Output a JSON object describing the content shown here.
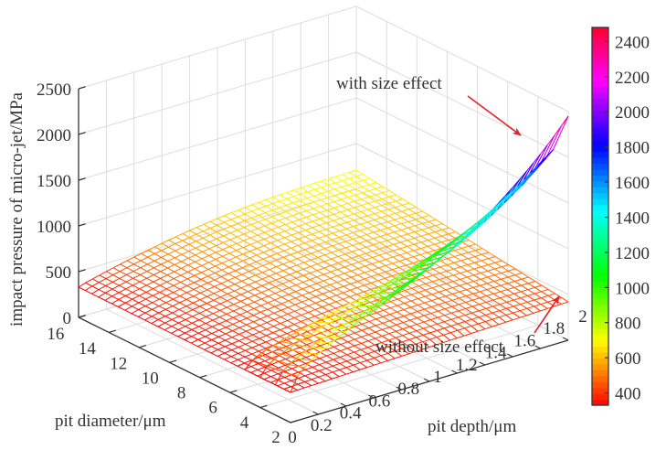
{
  "chart_data": {
    "type": "surface",
    "title": "",
    "xlabel": "pit depth/μm",
    "ylabel": "pit diameter/μm",
    "zlabel": "impact pressure of micro-jet/MPa",
    "xlim": [
      0,
      2
    ],
    "ylim": [
      2,
      16
    ],
    "zlim": [
      0,
      2500
    ],
    "x_ticks": [
      "0",
      "0.2",
      "0.4",
      "0.6",
      "0.8",
      "1",
      "1.2",
      "1.4",
      "1.6",
      "1.8",
      "2"
    ],
    "y_ticks": [
      "2",
      "4",
      "6",
      "8",
      "10",
      "12",
      "14",
      "16"
    ],
    "z_ticks": [
      "0",
      "500",
      "1000",
      "1500",
      "2000",
      "2500"
    ],
    "grid": true,
    "colormap": "hsv (red-yellow-green-cyan-blue-magenta-red)",
    "colorbar": {
      "location": "right",
      "ticks": [
        "400",
        "600",
        "800",
        "1000",
        "1200",
        "1400",
        "1600",
        "1800",
        "2000",
        "2200",
        "2400"
      ],
      "range": [
        330,
        2480
      ]
    },
    "series": [
      {
        "name": "without size effect",
        "description": "smooth surface rising with pit depth and pit diameter",
        "corner_values": {
          "depth0_dia2": 330,
          "depth0_dia16": 330,
          "depth2_dia2": 420,
          "depth2_dia16": 650
        }
      },
      {
        "name": "with size effect",
        "description": "surface defined for small pit diameters (2-5 μm); rises steeply with depth, highest at smallest diameter",
        "diameter_range": [
          2,
          5
        ],
        "edge_values_at_depth2": {
          "dia2": 2450,
          "dia3": 2000,
          "dia4": 1750,
          "dia5": 1450
        },
        "value_at_depth0": 330
      }
    ],
    "annotations": [
      {
        "text": "with size effect",
        "arrow": true,
        "arrow_color": "#e8202a"
      },
      {
        "text": "without size effect",
        "arrow": true,
        "arrow_color": "#e8202a"
      }
    ]
  }
}
